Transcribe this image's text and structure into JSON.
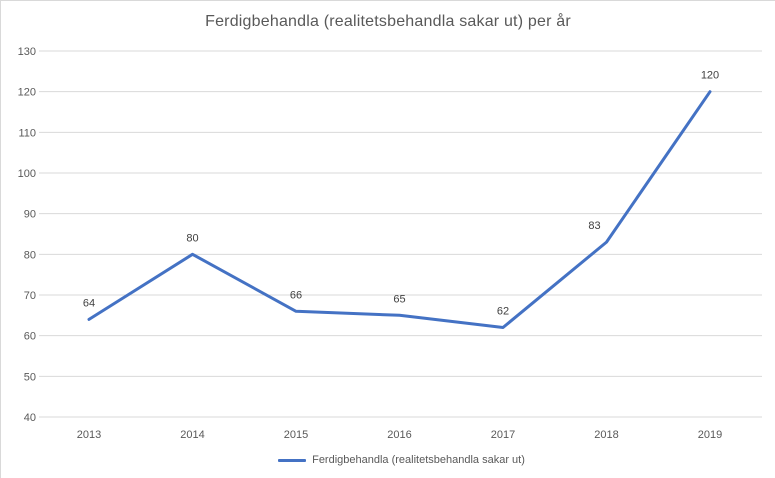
{
  "chart_data": {
    "type": "line",
    "title": "Ferdigbehandla (realitetsbehandla sakar ut) per år",
    "categories": [
      "2013",
      "2014",
      "2015",
      "2016",
      "2017",
      "2018",
      "2019"
    ],
    "series": [
      {
        "name": "Ferdigbehandla (realitetsbehandla sakar ut)",
        "values": [
          64,
          80,
          66,
          65,
          62,
          83,
          120
        ],
        "color": "#4472C4"
      }
    ],
    "xlabel": "",
    "ylabel": "",
    "ylim": [
      40,
      130
    ],
    "yticks": [
      40,
      50,
      60,
      70,
      80,
      90,
      100,
      110,
      120,
      130
    ],
    "grid": "horizontal",
    "markers": false,
    "data_labels_shown": true,
    "legend_position": "bottom",
    "legend_entries": [
      "Ferdigbehandla (realitetsbehandla sakar ut)"
    ]
  },
  "colors": {
    "line": "#4472C4",
    "gridline": "#D9D9D9",
    "title_text": "#595959",
    "axis_text": "#595959",
    "data_label_text": "#404040",
    "border": "#D9D9D9",
    "background": "#FFFFFF"
  }
}
